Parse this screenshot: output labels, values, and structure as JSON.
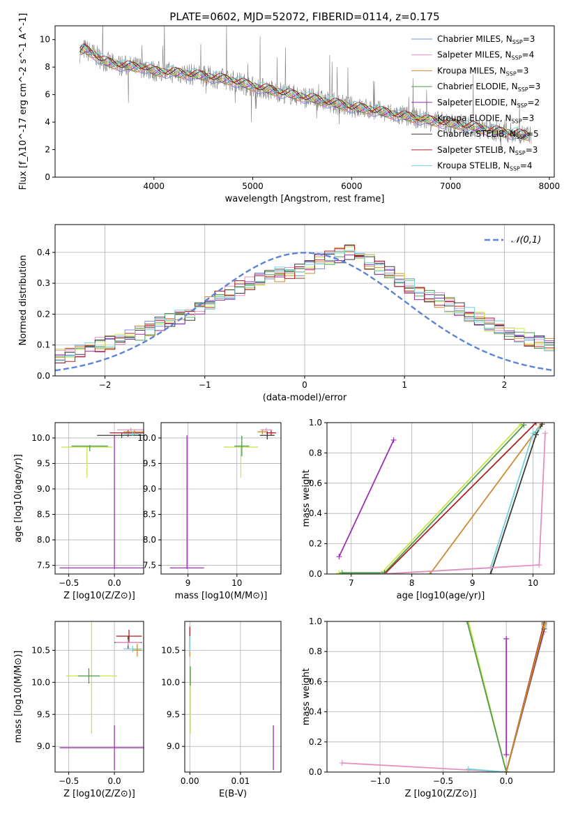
{
  "figure": {
    "title": "PLATE=0602, MJD=52072, FIBERID=0114, z=0.175"
  },
  "colors": {
    "chabrier_miles": "#6f8fe0",
    "salpeter_miles": "#e58fbf",
    "kroupa_miles": "#d08a2e",
    "chabrier_elodie": "#4f9b4f",
    "salpeter_elodie": "#9c2fb5",
    "kroupa_elodie": "#c6e64a",
    "chabrier_stelib": "#3a3a3a",
    "salpeter_stelib": "#b01f22",
    "kroupa_stelib": "#74d2d6",
    "spectrum": "#808080",
    "normal": "#5b84d8",
    "grid": "#b0b0b0"
  },
  "chart_data": [
    {
      "id": "spectrum",
      "type": "line",
      "title": "PLATE=0602, MJD=52072, FIBERID=0114, z=0.175",
      "xlabel": "wavelength [Angstrom, rest frame]",
      "ylabel": "Flux [f_λ10^-17 erg cm^-2 s^-1 A^-1]",
      "xlim": [
        3000,
        8050
      ],
      "ylim": [
        0,
        11
      ],
      "xticks": [
        4000,
        5000,
        6000,
        7000,
        8000
      ],
      "yticks": [
        0,
        2,
        4,
        6,
        8,
        10
      ],
      "grid": false,
      "legend_position": "top-right",
      "model_x": [
        3250,
        3300,
        3400,
        3500,
        3600,
        3700,
        3800,
        3900,
        4000,
        4200,
        4400,
        4600,
        4800,
        5000,
        5200,
        5400,
        5600,
        5800,
        6000,
        6200,
        6400,
        6600,
        6800,
        7000,
        7200,
        7400,
        7600,
        7800
      ],
      "model_y": [
        9.1,
        9.3,
        8.9,
        8.4,
        8.2,
        8.1,
        8.0,
        8.0,
        7.7,
        7.6,
        7.45,
        7.25,
        7.0,
        6.6,
        6.3,
        6.0,
        5.7,
        5.4,
        5.1,
        4.9,
        4.6,
        4.35,
        4.1,
        3.9,
        3.7,
        3.4,
        3.2,
        3.0
      ],
      "series": [
        {
          "name": "Chabrier MILES",
          "nssp": "3",
          "color_key": "chabrier_miles"
        },
        {
          "name": "Salpeter MILES",
          "nssp": "4",
          "color_key": "salpeter_miles"
        },
        {
          "name": "Kroupa MILES",
          "nssp": "3",
          "color_key": "kroupa_miles"
        },
        {
          "name": "Chabrier ELODIE",
          "nssp": "3",
          "color_key": "chabrier_elodie"
        },
        {
          "name": "Salpeter ELODIE",
          "nssp": "2",
          "color_key": "salpeter_elodie"
        },
        {
          "name": "Kroupa ELODIE",
          "nssp": "3",
          "color_key": "kroupa_elodie"
        },
        {
          "name": "Chabrier STELIB",
          "nssp": "5",
          "color_key": "chabrier_stelib"
        },
        {
          "name": "Salpeter STELIB",
          "nssp": "3",
          "color_key": "salpeter_stelib"
        },
        {
          "name": "Kroupa STELIB",
          "nssp": "4",
          "color_key": "kroupa_stelib"
        }
      ]
    },
    {
      "id": "residual_hist",
      "type": "line",
      "xlabel": "(data-model)/error",
      "ylabel": "Normed distribution",
      "xlim": [
        -2.5,
        2.5
      ],
      "ylim": [
        0,
        0.49
      ],
      "xticks": [
        -2,
        -1,
        0,
        1,
        2
      ],
      "yticks": [
        0.0,
        0.1,
        0.2,
        0.3,
        0.4
      ],
      "grid": true,
      "legend_position": "top-right",
      "reference_curve": {
        "name": "𝒩(0,1)",
        "mean": 0,
        "sigma": 1
      },
      "bin_edges_start": -2.5,
      "bin_width": 0.1,
      "base_profile": [
        0.065,
        0.07,
        0.08,
        0.09,
        0.1,
        0.11,
        0.12,
        0.13,
        0.14,
        0.155,
        0.17,
        0.18,
        0.19,
        0.205,
        0.22,
        0.24,
        0.255,
        0.27,
        0.285,
        0.3,
        0.31,
        0.32,
        0.33,
        0.335,
        0.34,
        0.35,
        0.37,
        0.38,
        0.39,
        0.4,
        0.39,
        0.37,
        0.35,
        0.33,
        0.31,
        0.29,
        0.27,
        0.26,
        0.245,
        0.23,
        0.215,
        0.2,
        0.185,
        0.17,
        0.155,
        0.14,
        0.13,
        0.12,
        0.11,
        0.1
      ]
    },
    {
      "id": "age_vs_Z",
      "type": "scatter",
      "xlabel": "Z [log10(Z/Z⊙)]",
      "ylabel": "age [log10(age/yr)]",
      "xlim": [
        -0.65,
        0.32
      ],
      "ylim": [
        7.33,
        10.3
      ],
      "xticks": [
        -0.5,
        0.0
      ],
      "yticks": [
        7.5,
        8.0,
        8.5,
        9.0,
        9.5,
        10.0
      ],
      "grid": true,
      "points": [
        {
          "series": "Salpeter ELODIE",
          "x": 0.0,
          "y": 7.45,
          "xerr": 0.6,
          "yerr_lo": 0.02,
          "yerr_hi": 2.6
        },
        {
          "series": "Kroupa ELODIE",
          "x": -0.3,
          "y": 9.82,
          "xerr": 0.28,
          "yerr_lo": 0.6,
          "yerr_hi": 0.03
        },
        {
          "series": "Chabrier ELODIE",
          "x": -0.27,
          "y": 9.84,
          "xerr": 0.2,
          "yerr_lo": 0.1,
          "yerr_hi": 0.02
        },
        {
          "series": "Chabrier STELIB",
          "x": 0.08,
          "y": 10.05,
          "xerr": 0.27,
          "yerr_lo": 0.05,
          "yerr_hi": 0.05
        },
        {
          "series": "Salpeter STELIB",
          "x": 0.15,
          "y": 10.1,
          "xerr": 0.2,
          "yerr_lo": 0.08,
          "yerr_hi": 0.06
        },
        {
          "series": "Kroupa MILES",
          "x": 0.22,
          "y": 10.12,
          "xerr": 0.12,
          "yerr_lo": 0.06,
          "yerr_hi": 0.05
        },
        {
          "series": "Salpeter MILES",
          "x": 0.18,
          "y": 10.16,
          "xerr": 0.15,
          "yerr_lo": 0.04,
          "yerr_hi": 0.04
        },
        {
          "series": "Kroupa STELIB",
          "x": 0.2,
          "y": 10.08,
          "xerr": 0.1,
          "yerr_lo": 0.04,
          "yerr_hi": 0.04
        }
      ]
    },
    {
      "id": "age_vs_mass",
      "type": "scatter",
      "xlabel": "mass [log10(M/M⊙)]",
      "ylabel": "",
      "xlim": [
        8.45,
        10.9
      ],
      "ylim": [
        7.33,
        10.3
      ],
      "xticks": [
        9,
        10
      ],
      "yticks": [
        7.5,
        8.0,
        8.5,
        9.0,
        9.5,
        10.0
      ],
      "grid": true,
      "points": [
        {
          "series": "Salpeter ELODIE",
          "x": 8.98,
          "y": 7.45,
          "xerr": 0.35,
          "yerr_lo": 0.02,
          "yerr_hi": 2.6
        },
        {
          "series": "Kroupa ELODIE",
          "x": 10.08,
          "y": 9.82,
          "xerr": 0.35,
          "yerr_lo": 0.6,
          "yerr_hi": 0.03
        },
        {
          "series": "Chabrier ELODIE",
          "x": 10.1,
          "y": 9.84,
          "xerr": 0.15,
          "yerr_lo": 0.2,
          "yerr_hi": 0.2
        },
        {
          "series": "Chabrier STELIB",
          "x": 10.62,
          "y": 10.05,
          "xerr": 0.15,
          "yerr_lo": 0.08,
          "yerr_hi": 0.08
        },
        {
          "series": "Salpeter STELIB",
          "x": 10.7,
          "y": 10.1,
          "xerr": 0.1,
          "yerr_lo": 0.05,
          "yerr_hi": 0.05
        },
        {
          "series": "Kroupa MILES",
          "x": 10.52,
          "y": 10.12,
          "xerr": 0.1,
          "yerr_lo": 0.05,
          "yerr_hi": 0.05
        },
        {
          "series": "Salpeter MILES",
          "x": 10.6,
          "y": 10.16,
          "xerr": 0.12,
          "yerr_lo": 0.04,
          "yerr_hi": 0.04
        }
      ]
    },
    {
      "id": "massweight_vs_age",
      "type": "line",
      "xlabel": "age [log10(age/yr)]",
      "ylabel": "mass weight",
      "xlim": [
        6.6,
        10.35
      ],
      "ylim": [
        0,
        1.0
      ],
      "xticks": [
        7,
        8,
        9,
        10
      ],
      "yticks": [
        0.0,
        0.2,
        0.4,
        0.6,
        0.8,
        1.0
      ],
      "grid": true,
      "series": [
        {
          "name": "Salpeter ELODIE",
          "x": [
            6.8,
            7.7
          ],
          "y": [
            0.115,
            0.885
          ]
        },
        {
          "name": "Kroupa ELODIE",
          "x": [
            6.8,
            7.5,
            9.8
          ],
          "y": [
            0.005,
            0.005,
            0.99
          ]
        },
        {
          "name": "Chabrier ELODIE",
          "x": [
            6.85,
            7.55,
            9.85
          ],
          "y": [
            0.008,
            0.008,
            0.985
          ]
        },
        {
          "name": "Salpeter STELIB",
          "x": [
            7.55,
            10.05
          ],
          "y": [
            0.0,
            1.0
          ]
        },
        {
          "name": "Kroupa MILES",
          "x": [
            8.3,
            10.15
          ],
          "y": [
            0.0,
            1.0
          ]
        },
        {
          "name": "Chabrier STELIB",
          "x": [
            9.3,
            10.05,
            10.15
          ],
          "y": [
            0.0,
            0.92,
            0.99
          ]
        },
        {
          "name": "Kroupa STELIB",
          "x": [
            7.5,
            9.3,
            10.0,
            10.1
          ],
          "y": [
            0.0,
            0.04,
            0.93,
            0.96
          ]
        },
        {
          "name": "Salpeter MILES",
          "x": [
            7.5,
            10.1,
            10.2
          ],
          "y": [
            0.0,
            0.06,
            0.93
          ]
        }
      ]
    },
    {
      "id": "mass_vs_Z",
      "type": "scatter",
      "xlabel": "Z [log10(Z/Z⊙)]",
      "ylabel": "mass [log10(M/M⊙)]",
      "xlim": [
        -0.65,
        0.32
      ],
      "ylim": [
        8.6,
        10.95
      ],
      "xticks": [
        -0.5,
        0.0
      ],
      "yticks": [
        9.0,
        9.5,
        10.0,
        10.5
      ],
      "grid": true,
      "points": [
        {
          "series": "Salpeter ELODIE",
          "x": 0.0,
          "y": 8.98,
          "xerr": 0.6,
          "yerr": 0.35
        },
        {
          "series": "Kroupa ELODIE",
          "x": -0.25,
          "y": 10.1,
          "xerr": 0.28,
          "yerr": 0.9
        },
        {
          "series": "Chabrier ELODIE",
          "x": -0.28,
          "y": 10.1,
          "xerr": 0.12,
          "yerr": 0.12
        },
        {
          "series": "Salpeter STELIB",
          "x": 0.16,
          "y": 10.72,
          "xerr": 0.14,
          "yerr": 0.1
        },
        {
          "series": "Chabrier STELIB",
          "x": 0.15,
          "y": 10.62,
          "xerr": 0.15,
          "yerr": 0.1
        },
        {
          "series": "Salpeter MILES",
          "x": 0.15,
          "y": 10.62,
          "xerr": 0.14,
          "yerr": 0.05
        },
        {
          "series": "Kroupa STELIB",
          "x": 0.2,
          "y": 10.52,
          "xerr": 0.1,
          "yerr": 0.05
        },
        {
          "series": "Kroupa MILES",
          "x": 0.25,
          "y": 10.5,
          "xerr": 0.05,
          "yerr": 0.1
        }
      ]
    },
    {
      "id": "mass_vs_ebv",
      "type": "scatter",
      "xlabel": "E(B-V)",
      "ylabel": "",
      "xlim": [
        -0.001,
        0.018
      ],
      "ylim": [
        8.6,
        10.95
      ],
      "xticks": [
        0.0,
        0.01
      ],
      "yticks": [
        9.0,
        9.5,
        10.0,
        10.5
      ],
      "grid": true,
      "points": [
        {
          "series": "Salpeter ELODIE",
          "x": 0.0165,
          "y": 8.98,
          "yerr": 0.35
        },
        {
          "series": "Kroupa ELODIE",
          "x": 0.0001,
          "y": 9.7,
          "yerr": 0.5
        },
        {
          "series": "Chabrier ELODIE",
          "x": 0.0001,
          "y": 10.1,
          "yerr": 0.15
        },
        {
          "series": "Kroupa MILES",
          "x": 0.0,
          "y": 10.55,
          "yerr": 0.15
        },
        {
          "series": "Salpeter STELIB",
          "x": 0.0,
          "y": 10.72,
          "yerr": 0.15
        },
        {
          "series": "Kroupa STELIB",
          "x": 0.0,
          "y": 10.6,
          "yerr": 0.12
        }
      ]
    },
    {
      "id": "massweight_vs_Z",
      "type": "line",
      "xlabel": "Z [log10(Z/Z⊙)]",
      "ylabel": "mass weight",
      "xlim": [
        -1.42,
        0.38
      ],
      "ylim": [
        0,
        1.0
      ],
      "xticks": [
        -1.0,
        -0.5,
        0.0
      ],
      "yticks": [
        0.0,
        0.2,
        0.4,
        0.6,
        0.8,
        1.0
      ],
      "grid": true,
      "series": [
        {
          "name": "Salpeter ELODIE",
          "x": [
            0.0,
            0.0
          ],
          "y": [
            0.115,
            0.885
          ]
        },
        {
          "name": "Kroupa ELODIE",
          "x": [
            -0.3,
            0.0,
            0.3
          ],
          "y": [
            1.0,
            0.0,
            0.99
          ]
        },
        {
          "name": "Chabrier ELODIE",
          "x": [
            -0.31,
            0.0,
            0.3
          ],
          "y": [
            1.0,
            0.0,
            0.98
          ]
        },
        {
          "name": "Salpeter MILES",
          "x": [
            -1.3,
            0.0,
            0.3
          ],
          "y": [
            0.06,
            0.0,
            0.93
          ]
        },
        {
          "name": "Kroupa STELIB",
          "x": [
            -0.3,
            0.0,
            0.3
          ],
          "y": [
            0.02,
            0.0,
            0.96
          ]
        },
        {
          "name": "Salpeter STELIB",
          "x": [
            0.0,
            0.3
          ],
          "y": [
            0.0,
            0.99
          ]
        },
        {
          "name": "Chabrier STELIB",
          "x": [
            0.0,
            0.3
          ],
          "y": [
            0.0,
            0.95
          ]
        },
        {
          "name": "Kroupa MILES",
          "x": [
            0.0,
            0.3
          ],
          "y": [
            0.0,
            0.97
          ]
        }
      ]
    }
  ]
}
